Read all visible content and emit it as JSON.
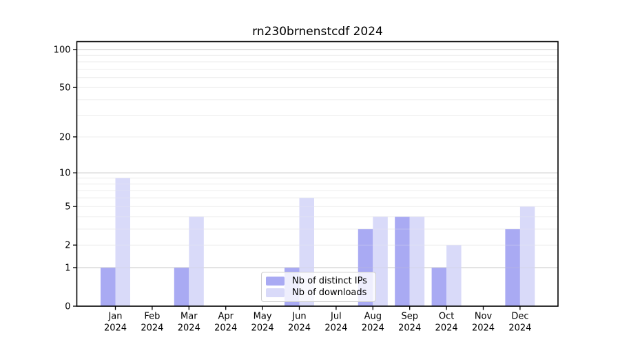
{
  "title": "rn230brnenstcdf 2024",
  "legend": {
    "items": [
      {
        "label": "Nb of distinct IPs",
        "color": "#a9aaf3"
      },
      {
        "label": "Nb of downloads",
        "color": "#d9daf9"
      }
    ]
  },
  "chart_data": {
    "type": "bar",
    "title": "rn230brnenstcdf 2024",
    "categories": [
      "Jan",
      "Feb",
      "Mar",
      "Apr",
      "May",
      "Jun",
      "Jul",
      "Aug",
      "Sep",
      "Oct",
      "Nov",
      "Dec"
    ],
    "category_year": "2024",
    "series": [
      {
        "name": "Nb of distinct IPs",
        "color": "#a9aaf3",
        "values": [
          1,
          0,
          1,
          0,
          0,
          1,
          0,
          3,
          4,
          1,
          0,
          3
        ]
      },
      {
        "name": "Nb of downloads",
        "color": "#d9daf9",
        "values": [
          9,
          0,
          4,
          0,
          0,
          6,
          0,
          4,
          4,
          2,
          0,
          5
        ]
      }
    ],
    "yscale": "log1p",
    "yticks": [
      0,
      1,
      2,
      5,
      10,
      20,
      50,
      100
    ],
    "ylim": [
      0,
      116
    ],
    "grid": true,
    "grid_major_at": [
      1,
      10,
      100
    ],
    "legend_position": "lower center",
    "colors": {
      "grid_major": "#c7c7c7",
      "grid_minor": "#ededed",
      "spine": "#000000"
    }
  }
}
